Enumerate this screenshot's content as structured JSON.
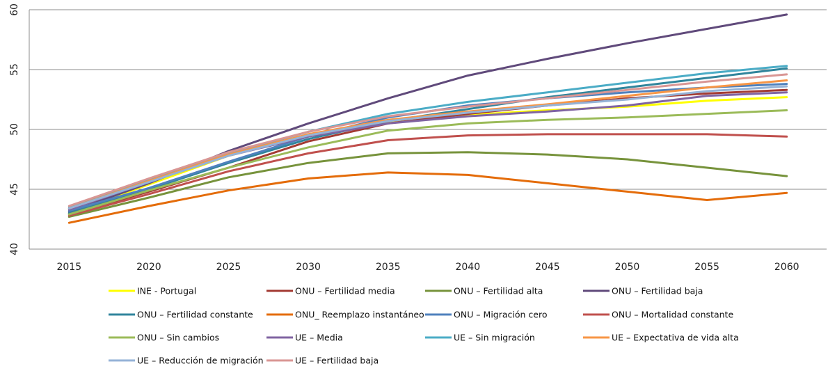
{
  "chart_data": {
    "type": "line",
    "x": [
      2015,
      2020,
      2025,
      2030,
      2035,
      2040,
      2045,
      2050,
      2055,
      2060
    ],
    "ylim": [
      40,
      60
    ],
    "yticks": [
      40,
      45,
      50,
      55,
      60
    ],
    "grid": true,
    "legend_position": "bottom",
    "series": [
      {
        "name": "INE - Portugal",
        "color": "#FFFF00",
        "values": [
          43.0,
          45.4,
          47.8,
          49.5,
          50.6,
          51.2,
          51.6,
          51.9,
          52.4,
          52.7
        ]
      },
      {
        "name": "ONU – Fertilidad media",
        "color": "#A33B33",
        "values": [
          42.9,
          44.8,
          46.8,
          49.0,
          50.5,
          51.3,
          52.0,
          52.6,
          53.0,
          53.3
        ]
      },
      {
        "name": "ONU – Fertilidad alta",
        "color": "#77933C",
        "values": [
          42.7,
          44.3,
          46.0,
          47.2,
          48.0,
          48.1,
          47.9,
          47.5,
          46.8,
          46.1
        ]
      },
      {
        "name": "ONU – Fertilidad baja",
        "color": "#604A7B",
        "values": [
          43.1,
          45.5,
          48.2,
          50.5,
          52.6,
          54.5,
          55.9,
          57.2,
          58.4,
          59.6
        ]
      },
      {
        "name": "ONU – Fertilidad constante",
        "color": "#31859C",
        "values": [
          43.0,
          45.0,
          47.2,
          49.2,
          50.7,
          51.7,
          52.7,
          53.5,
          54.3,
          55.1
        ]
      },
      {
        "name": "ONU_ Reemplazo instantáneo",
        "color": "#E46C0A",
        "values": [
          42.2,
          43.6,
          44.9,
          45.9,
          46.4,
          46.2,
          45.5,
          44.8,
          44.1,
          44.7
        ]
      },
      {
        "name": "ONU – Migración cero",
        "color": "#4F81BD",
        "values": [
          43.2,
          45.1,
          47.3,
          49.4,
          51.0,
          52.0,
          52.6,
          53.1,
          53.5,
          53.8
        ]
      },
      {
        "name": "ONU – Mortalidad constante",
        "color": "#C0504D",
        "values": [
          42.8,
          44.6,
          46.5,
          48.0,
          49.1,
          49.5,
          49.6,
          49.6,
          49.6,
          49.4
        ]
      },
      {
        "name": "ONU – Sin cambios",
        "color": "#9BBB59",
        "values": [
          42.9,
          44.9,
          46.8,
          48.5,
          49.9,
          50.5,
          50.8,
          51.0,
          51.3,
          51.6
        ]
      },
      {
        "name": "UE – Media",
        "color": "#8064A2",
        "values": [
          43.3,
          45.6,
          47.8,
          49.4,
          50.5,
          51.1,
          51.5,
          52.0,
          52.8,
          53.1
        ]
      },
      {
        "name": "UE – Sin migración",
        "color": "#4BACC6",
        "values": [
          43.5,
          45.8,
          48.0,
          49.8,
          51.3,
          52.3,
          53.1,
          53.9,
          54.7,
          55.3
        ]
      },
      {
        "name": "UE – Expectativa de vida alta",
        "color": "#F79646",
        "values": [
          43.4,
          45.7,
          47.9,
          49.6,
          50.8,
          51.5,
          52.1,
          52.8,
          53.5,
          54.1
        ]
      },
      {
        "name": "UE – Reducción de migración",
        "color": "#95B3D7",
        "values": [
          43.4,
          45.6,
          47.8,
          49.5,
          50.7,
          51.4,
          52.0,
          52.5,
          53.2,
          53.6
        ]
      },
      {
        "name": "UE – Fertilidad baja",
        "color": "#D99694",
        "values": [
          43.6,
          45.9,
          48.1,
          49.8,
          51.1,
          51.9,
          52.6,
          53.3,
          54.0,
          54.6
        ]
      }
    ]
  }
}
